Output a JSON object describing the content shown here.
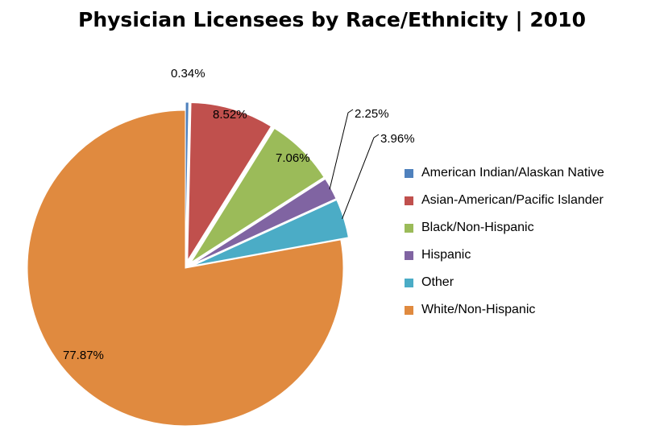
{
  "chart_data": {
    "type": "pie",
    "title": "Physician Licensees by Race/Ethnicity | 2010",
    "slices": [
      {
        "name": "American Indian/Alaskan Native",
        "value": 0.34,
        "label": "0.34%",
        "color": "#4F81BD",
        "exploded": true
      },
      {
        "name": "Asian-American/Pacific Islander",
        "value": 8.52,
        "label": "8.52%",
        "color": "#C0504D",
        "exploded": true
      },
      {
        "name": "Black/Non-Hispanic",
        "value": 7.06,
        "label": "7.06%",
        "color": "#9BBB59",
        "exploded": true
      },
      {
        "name": "Hispanic",
        "value": 2.25,
        "label": "2.25%",
        "color": "#8064A2",
        "exploded": true
      },
      {
        "name": "Other",
        "value": 3.96,
        "label": "3.96%",
        "color": "#4BACC6",
        "exploded": true
      },
      {
        "name": "White/Non-Hispanic",
        "value": 77.87,
        "label": "77.87%",
        "color": "#E08A3F",
        "exploded": false
      }
    ],
    "legend_position": "right"
  }
}
